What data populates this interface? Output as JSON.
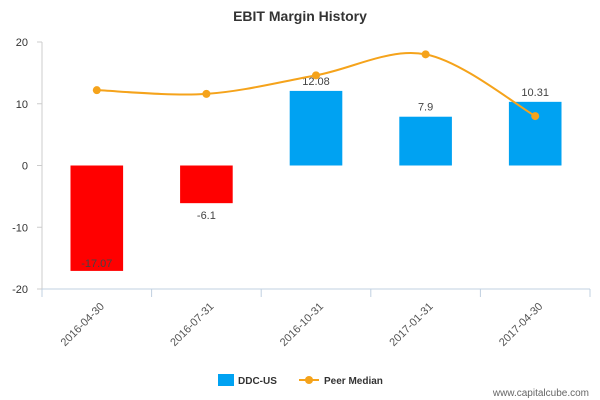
{
  "chart_data": {
    "type": "bar",
    "title": "EBIT Margin History",
    "categories": [
      "2016-04-30",
      "2016-07-31",
      "2016-10-31",
      "2017-01-31",
      "2017-04-30"
    ],
    "series": [
      {
        "name": "DDC-US",
        "type": "bar",
        "values": [
          -17.07,
          -6.1,
          12.08,
          7.9,
          10.31
        ],
        "labels": [
          "-17.07",
          "-6.1",
          "12.08",
          "7.9",
          "10.31"
        ],
        "color": "#00a2f2",
        "negative_color": "#ff0000"
      },
      {
        "name": "Peer Median",
        "type": "line",
        "values": [
          12.2,
          11.6,
          14.6,
          18.0,
          8.0
        ],
        "color": "#f5a31b"
      }
    ],
    "yticks": [
      20,
      10,
      0,
      -10,
      -20
    ],
    "ylim": [
      -20,
      20
    ],
    "grid": false,
    "legend_position": "bottom-center"
  },
  "watermark": "www.capitalcube.com"
}
